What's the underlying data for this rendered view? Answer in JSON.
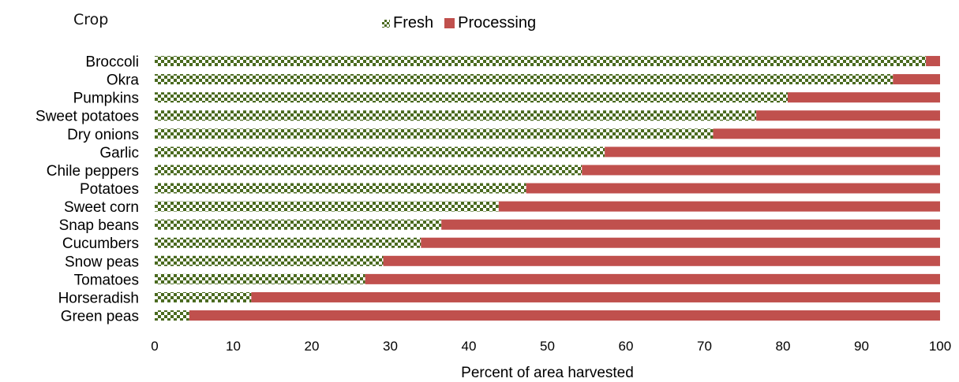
{
  "chart_data": {
    "type": "bar",
    "orientation": "horizontal",
    "stacked": true,
    "title": "",
    "ylabel": "Crop",
    "xlabel": "Percent of area harvested",
    "xlim": [
      0,
      100
    ],
    "xticks": [
      0,
      10,
      20,
      30,
      40,
      50,
      60,
      70,
      80,
      90,
      100
    ],
    "grid": false,
    "legend_position": "top",
    "categories": [
      "Broccoli",
      "Okra",
      "Pumpkins",
      "Sweet potatoes",
      "Dry onions",
      "Garlic",
      "Chile peppers",
      "Potatoes",
      "Sweet corn",
      "Snap beans",
      "Cucumbers",
      "Snow peas",
      "Tomatoes",
      "Horseradish",
      "Green peas"
    ],
    "series": [
      {
        "name": "Fresh",
        "color": "#4a6a1f",
        "pattern": "checkerboard",
        "values": [
          98.2,
          94.0,
          80.6,
          76.6,
          71.1,
          57.3,
          54.4,
          47.3,
          43.8,
          36.5,
          33.9,
          29.1,
          26.8,
          12.3,
          4.4
        ]
      },
      {
        "name": "Processing",
        "color": "#c0504d",
        "pattern": "solid",
        "values": [
          1.8,
          6.0,
          19.4,
          23.4,
          28.9,
          42.7,
          45.6,
          52.7,
          56.2,
          63.5,
          66.1,
          70.9,
          73.2,
          87.7,
          95.6
        ]
      }
    ]
  }
}
